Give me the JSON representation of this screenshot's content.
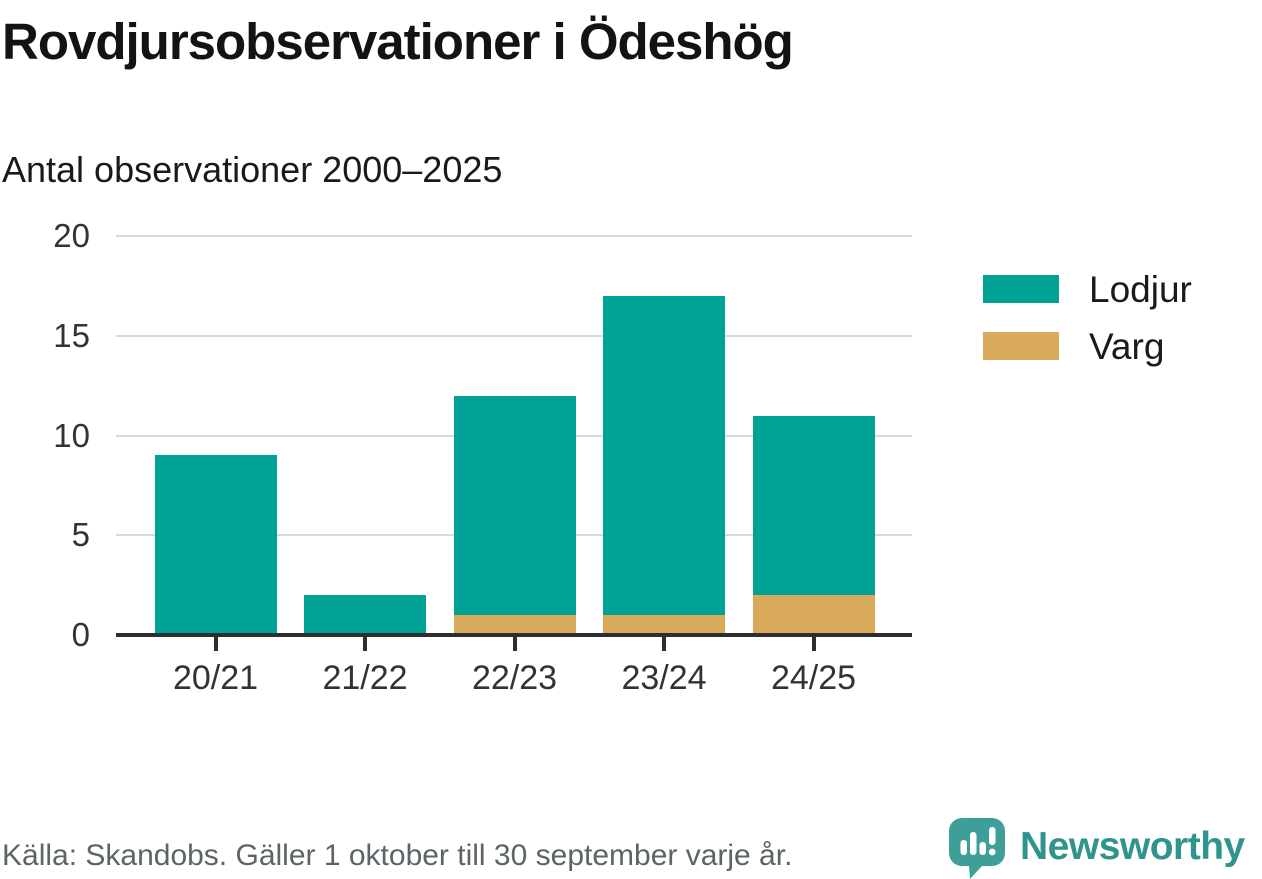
{
  "header": {
    "title": "Rovdjursobservationer i Ödeshög",
    "subtitle": "Antal observationer 2000–2025"
  },
  "chart_data": {
    "type": "bar",
    "stacked": true,
    "title": "Rovdjursobservationer i Ödeshög",
    "subtitle": "Antal observationer 2000–2025",
    "categories": [
      "20/21",
      "21/22",
      "22/23",
      "23/24",
      "24/25"
    ],
    "series": [
      {
        "name": "Lodjur",
        "color": "#00a296",
        "values": [
          9,
          2,
          11,
          16,
          9
        ]
      },
      {
        "name": "Varg",
        "color": "#d9a95c",
        "values": [
          0,
          0,
          1,
          1,
          2
        ]
      }
    ],
    "totals": [
      9,
      2,
      12,
      17,
      11
    ],
    "xlabel": "",
    "ylabel": "",
    "ylim": [
      0,
      20
    ],
    "yticks": [
      0,
      5,
      10,
      15,
      20
    ],
    "grid": "horizontal",
    "legend_position": "right"
  },
  "legend": {
    "items": [
      {
        "label": "Lodjur",
        "color": "#00a296"
      },
      {
        "label": "Varg",
        "color": "#d9a95c"
      }
    ]
  },
  "footer": {
    "source": "Källa: Skandobs. Gäller 1 oktober till 30 september varje år.",
    "brand": "Newsworthy"
  },
  "colors": {
    "lodjur": "#00a296",
    "varg": "#d9a95c",
    "brand_teal": "#2f948c",
    "logo_teal": "#3d9f97",
    "axis_text": "#333333",
    "gridline": "#dadada",
    "baseline": "#2e2e2e",
    "footer_text": "#5d6467",
    "title_text": "#121314"
  }
}
